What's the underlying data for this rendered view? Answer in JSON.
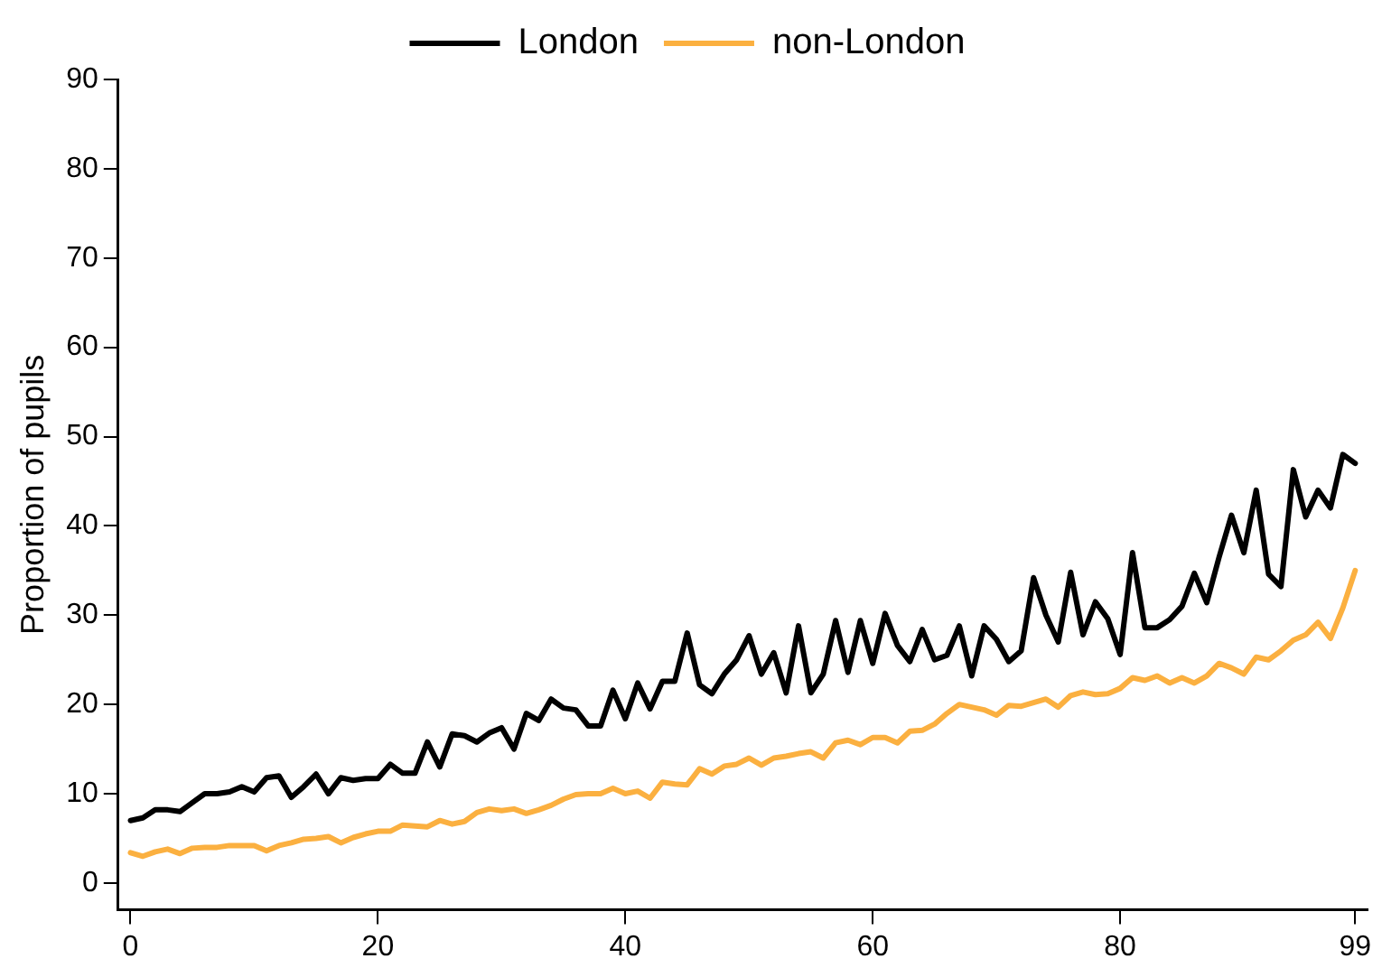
{
  "chart_data": {
    "type": "line",
    "ylabel": "Proportion of pupils",
    "legend": "top",
    "grid": false,
    "marker": "none",
    "line_style": "solid",
    "x": [
      0,
      1,
      2,
      3,
      4,
      5,
      6,
      7,
      8,
      9,
      10,
      11,
      12,
      13,
      14,
      15,
      16,
      17,
      18,
      19,
      20,
      21,
      22,
      23,
      24,
      25,
      26,
      27,
      28,
      29,
      30,
      31,
      32,
      33,
      34,
      35,
      36,
      37,
      38,
      39,
      40,
      41,
      42,
      43,
      44,
      45,
      46,
      47,
      48,
      49,
      50,
      51,
      52,
      53,
      54,
      55,
      56,
      57,
      58,
      59,
      60,
      61,
      62,
      63,
      64,
      65,
      66,
      67,
      68,
      69,
      70,
      71,
      72,
      73,
      74,
      75,
      76,
      77,
      78,
      79,
      80,
      81,
      82,
      83,
      84,
      85,
      86,
      87,
      88,
      89,
      90,
      91,
      92,
      93,
      94,
      95,
      96,
      97,
      98,
      99
    ],
    "xlim": [
      -1,
      100
    ],
    "xticks": [
      0,
      20,
      40,
      60,
      80,
      99
    ],
    "ylim": [
      -3,
      90
    ],
    "yticks": [
      0,
      10,
      20,
      30,
      40,
      50,
      60,
      70,
      80,
      90
    ],
    "series": [
      {
        "name": "London",
        "color": "#000000",
        "values": [
          7,
          7.3,
          8.2,
          8.2,
          8,
          9,
          10,
          10,
          10.2,
          10.8,
          10.2,
          11.8,
          12,
          9.6,
          10.8,
          12.2,
          10,
          11.8,
          11.5,
          11.7,
          11.7,
          13.3,
          12.3,
          12.3,
          15.8,
          13,
          16.7,
          16.5,
          15.8,
          16.8,
          17.4,
          15,
          19,
          18.2,
          20.6,
          19.6,
          19.4,
          17.6,
          17.6,
          21.6,
          18.4,
          22.4,
          19.5,
          22.6,
          22.6,
          28,
          22.2,
          21.2,
          23.4,
          25,
          27.7,
          23.4,
          25.8,
          21.3,
          28.8,
          21.3,
          23.4,
          29.4,
          23.6,
          29.4,
          24.6,
          30.2,
          26.6,
          24.8,
          28.4,
          25,
          25.5,
          28.8,
          23.2,
          28.8,
          27.3,
          24.8,
          26,
          34.2,
          30,
          27,
          34.8,
          27.8,
          31.5,
          29.6,
          25.6,
          37,
          28.6,
          28.6,
          29.5,
          31,
          34.7,
          31.4,
          36.5,
          41.2,
          37,
          44,
          34.6,
          33.2,
          46.3,
          41,
          44,
          42,
          48,
          47
        ]
      },
      {
        "name": "non-London",
        "color": "#fbb040",
        "values": [
          3.4,
          3,
          3.5,
          3.8,
          3.3,
          3.9,
          4,
          4,
          4.2,
          4.2,
          4.2,
          3.6,
          4.2,
          4.5,
          4.9,
          5,
          5.2,
          4.5,
          5.1,
          5.5,
          5.8,
          5.8,
          6.5,
          6.4,
          6.3,
          7,
          6.6,
          6.9,
          7.9,
          8.3,
          8.1,
          8.3,
          7.8,
          8.2,
          8.7,
          9.4,
          9.9,
          10,
          10,
          10.6,
          10,
          10.3,
          9.5,
          11.3,
          11.1,
          11,
          12.8,
          12.2,
          13.1,
          13.3,
          14,
          13.2,
          14,
          14.2,
          14.5,
          14.7,
          14,
          15.7,
          16,
          15.5,
          16.3,
          16.3,
          15.7,
          17,
          17.1,
          17.8,
          19,
          20,
          19.7,
          19.4,
          18.8,
          19.9,
          19.8,
          20.2,
          20.6,
          19.7,
          21,
          21.4,
          21.1,
          21.2,
          21.8,
          23,
          22.7,
          23.2,
          22.4,
          23,
          22.4,
          23.2,
          24.6,
          24.1,
          23.4,
          25.3,
          25,
          26,
          27.2,
          27.8,
          29.2,
          27.4,
          30.8,
          35
        ]
      }
    ]
  }
}
